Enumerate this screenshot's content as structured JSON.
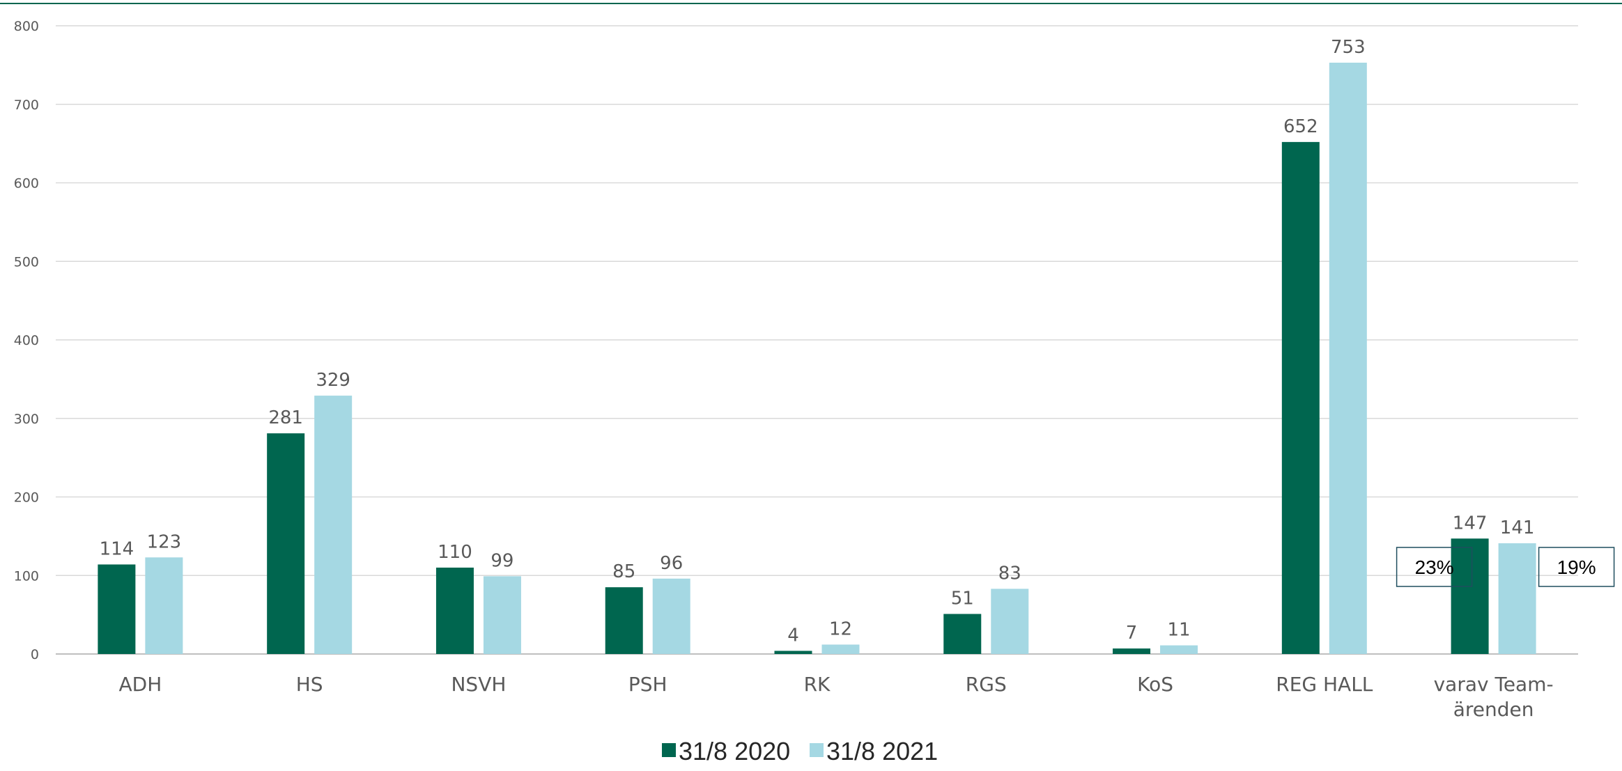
{
  "chart_data": {
    "type": "bar",
    "categories": [
      "ADH",
      "HS",
      "NSVH",
      "PSH",
      "RK",
      "RGS",
      "KoS",
      "REG HALL",
      "varav Team-|ärenden"
    ],
    "series": [
      {
        "name": "31/8 2020",
        "color": "#00664F",
        "values": [
          114,
          281,
          110,
          85,
          4,
          51,
          7,
          652,
          147
        ]
      },
      {
        "name": "31/8 2021",
        "color": "#A5D8E3",
        "values": [
          123,
          329,
          99,
          96,
          12,
          83,
          11,
          753,
          141
        ]
      }
    ],
    "yticks": [
      0,
      100,
      200,
      300,
      400,
      500,
      600,
      700,
      800
    ],
    "ylim": [
      0,
      800
    ],
    "grid": true,
    "legend": "bottom-center",
    "annotations": [
      {
        "text": "23%",
        "series": 0,
        "category": 8
      },
      {
        "text": "19%",
        "series": 1,
        "category": 8
      }
    ]
  },
  "colors": {
    "top_rule": "#00664F",
    "grid": "#D9D9D9",
    "axis": "#BFBFBF",
    "box_border": "#1F4E5F"
  }
}
